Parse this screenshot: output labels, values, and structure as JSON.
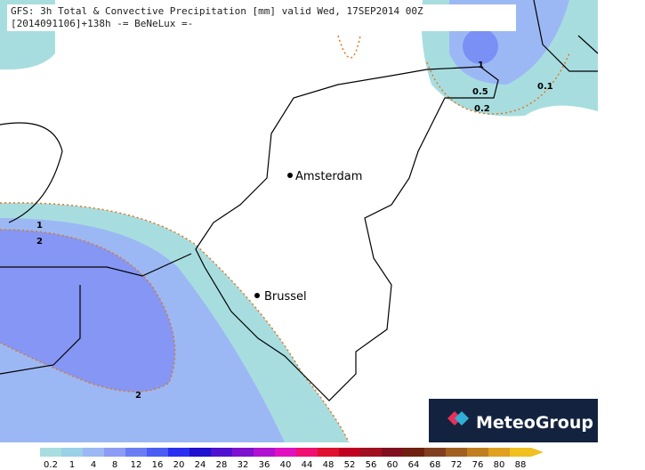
{
  "header": {
    "title": "GFS: 3h Total & Convective Precipitation [mm] valid Wed, 17SEP2014 00Z",
    "subtitle": "[2014091106]+138h -= BeNeLux =-"
  },
  "cities": [
    {
      "label": "Amsterdam"
    },
    {
      "label": "Brussel"
    }
  ],
  "contour_labels": [
    "1",
    "0.5",
    "0.2",
    "0.1",
    "1",
    "2",
    "2"
  ],
  "legend": {
    "labels": [
      "0.2",
      "1",
      "4",
      "8",
      "12",
      "16",
      "20",
      "24",
      "28",
      "32",
      "36",
      "40",
      "44",
      "48",
      "52",
      "56",
      "60",
      "64",
      "68",
      "72",
      "76",
      "80",
      "88"
    ],
    "colors": [
      "#a8dde0",
      "#9ad0e8",
      "#9cb8f4",
      "#8c9cf4",
      "#6a7cf4",
      "#4a5cf4",
      "#2a30f0",
      "#2010d0",
      "#5010d0",
      "#8010d0",
      "#b010d0",
      "#e010c0",
      "#f01070",
      "#e01030",
      "#c00020",
      "#a01020",
      "#801020",
      "#702010",
      "#804020",
      "#a06020",
      "#c08020",
      "#e0a020",
      "#f0c020"
    ]
  },
  "logo": "MeteoGroup"
}
